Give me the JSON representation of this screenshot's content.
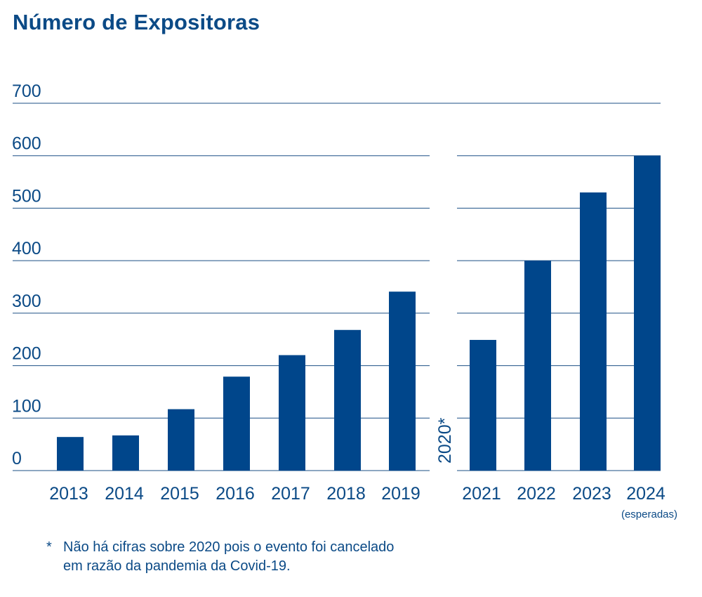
{
  "title": "Número de Expositoras",
  "colors": {
    "bar": "#00468b",
    "text": "#0b4a86",
    "grid": "#1b4f85"
  },
  "chart_data": {
    "type": "bar",
    "title": "Número de Expositoras",
    "xlabel": "",
    "ylabel": "",
    "ylim": [
      0,
      700
    ],
    "yticks": [
      "0",
      "100",
      "200",
      "300",
      "400",
      "500",
      "600",
      "700"
    ],
    "grid": true,
    "categories": [
      "2013",
      "2014",
      "2015",
      "2016",
      "2017",
      "2018",
      "2019",
      "2021",
      "2022",
      "2023",
      "2024"
    ],
    "values": [
      64,
      67,
      117,
      179,
      220,
      268,
      341,
      249,
      400,
      530,
      600
    ],
    "gap_label": "2020*",
    "category_notes": {
      "2024": "(esperadas)"
    }
  },
  "footnote": {
    "marker": "*",
    "lines": [
      "Não há cifras sobre 2020 pois o evento foi cancelado",
      "em razão da pandemia da Covid-19."
    ]
  }
}
